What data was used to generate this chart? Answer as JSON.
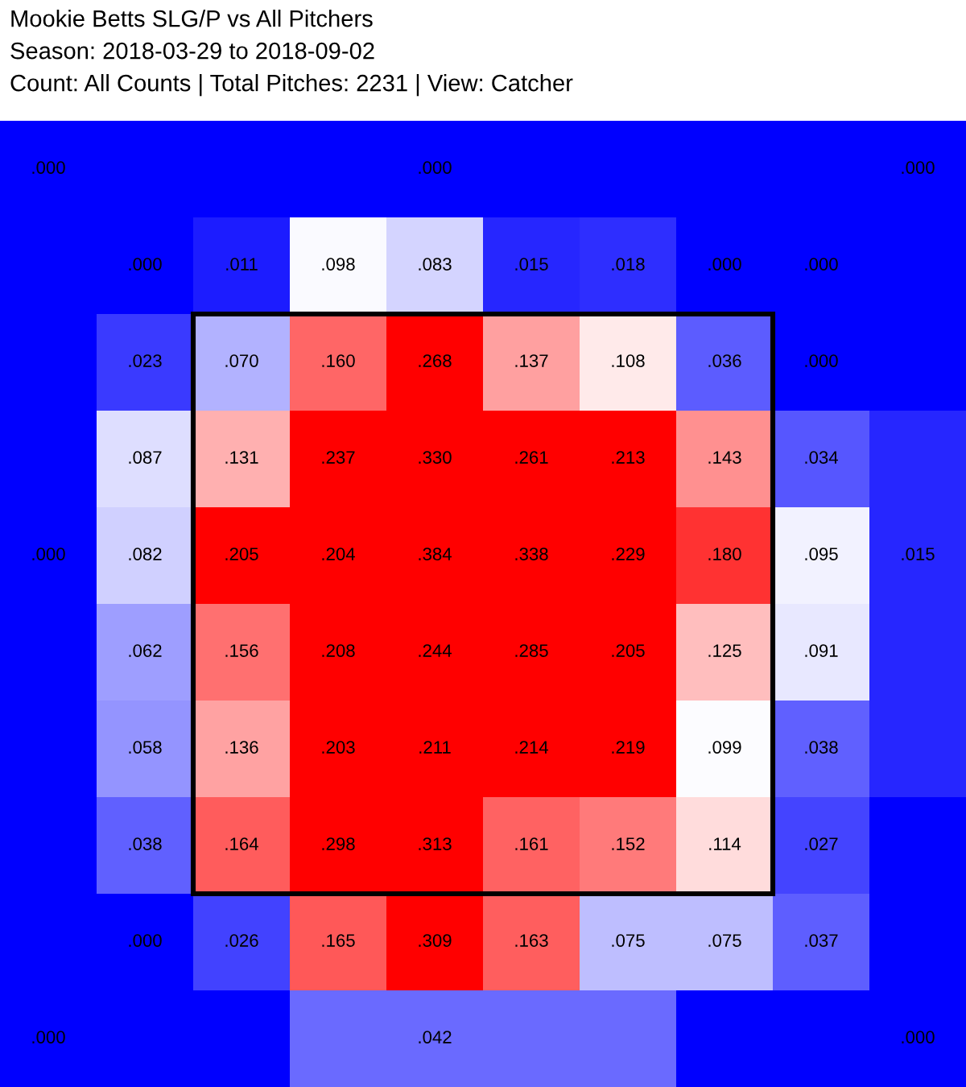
{
  "chart_data": {
    "type": "heatmap",
    "title": "Mookie Betts SLG/P vs All Pitchers",
    "subtitle": "Season: 2018-03-29 to 2018-09-02",
    "annotations": [
      "Count: All Counts | Total Pitches: 2231 | View: Catcher"
    ],
    "categories": [
      null,
      null,
      null,
      null,
      null,
      null,
      null,
      null,
      null,
      null
    ],
    "y_categories": [
      null,
      null,
      null,
      null,
      null,
      null,
      null,
      null,
      null,
      null
    ],
    "cells": [
      [
        0.0,
        null,
        null,
        null,
        0.0,
        null,
        null,
        null,
        null,
        0.0
      ],
      [
        null,
        0.0,
        0.011,
        0.098,
        0.083,
        0.015,
        0.018,
        0.0,
        0.0,
        null
      ],
      [
        null,
        0.023,
        0.07,
        0.16,
        0.268,
        0.137,
        0.108,
        0.036,
        0.0,
        null
      ],
      [
        null,
        0.087,
        0.131,
        0.237,
        0.33,
        0.261,
        0.213,
        0.143,
        0.034,
        null
      ],
      [
        0.0,
        0.082,
        0.205,
        0.204,
        0.384,
        0.338,
        0.229,
        0.18,
        0.095,
        0.015
      ],
      [
        null,
        0.062,
        0.156,
        0.208,
        0.244,
        0.285,
        0.205,
        0.125,
        0.091,
        null
      ],
      [
        null,
        0.058,
        0.136,
        0.203,
        0.211,
        0.214,
        0.219,
        0.099,
        0.038,
        null
      ],
      [
        null,
        0.038,
        0.164,
        0.298,
        0.313,
        0.161,
        0.152,
        0.114,
        0.027,
        null
      ],
      [
        null,
        0.0,
        0.026,
        0.165,
        0.309,
        0.163,
        0.075,
        0.075,
        0.037,
        null
      ],
      [
        0.0,
        null,
        null,
        null,
        0.042,
        null,
        null,
        null,
        null,
        0.0
      ]
    ],
    "cell_labels": [
      [
        ".000",
        null,
        null,
        null,
        ".000",
        null,
        null,
        null,
        null,
        ".000"
      ],
      [
        null,
        ".000",
        ".011",
        ".098",
        ".083",
        ".015",
        ".018",
        ".000",
        ".000",
        null
      ],
      [
        null,
        ".023",
        ".070",
        ".160",
        ".268",
        ".137",
        ".108",
        ".036",
        ".000",
        null
      ],
      [
        null,
        ".087",
        ".131",
        ".237",
        ".330",
        ".261",
        ".213",
        ".143",
        ".034",
        null
      ],
      [
        ".000",
        ".082",
        ".205",
        ".204",
        ".384",
        ".338",
        ".229",
        ".180",
        ".095",
        ".015"
      ],
      [
        null,
        ".062",
        ".156",
        ".208",
        ".244",
        ".285",
        ".205",
        ".125",
        ".091",
        null
      ],
      [
        null,
        ".058",
        ".136",
        ".203",
        ".211",
        ".214",
        ".219",
        ".099",
        ".038",
        null
      ],
      [
        null,
        ".038",
        ".164",
        ".298",
        ".313",
        ".161",
        ".152",
        ".114",
        ".027",
        null
      ],
      [
        null,
        ".000",
        ".026",
        ".165",
        ".309",
        ".163",
        ".075",
        ".075",
        ".037",
        null
      ],
      [
        ".000",
        null,
        null,
        null,
        ".042",
        null,
        null,
        null,
        null,
        ".000"
      ]
    ]
  }
}
